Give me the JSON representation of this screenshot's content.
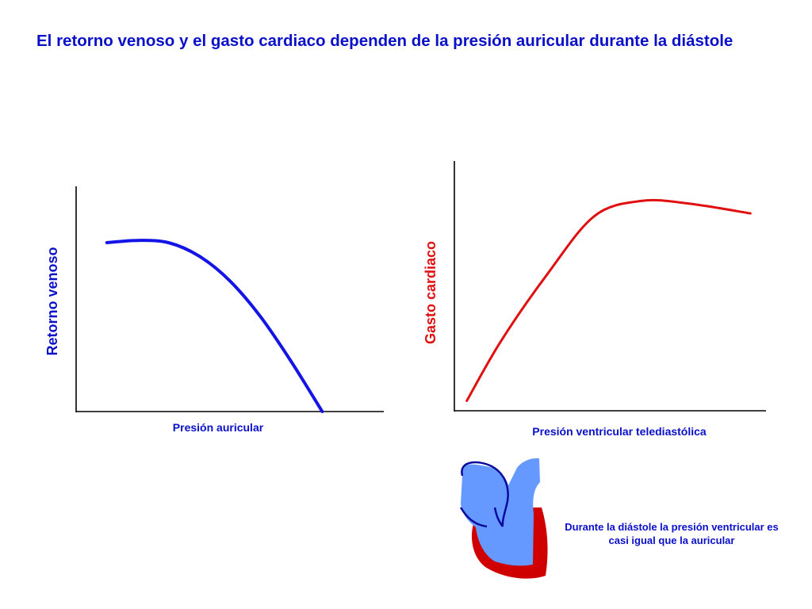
{
  "slide": {
    "title": "El retorno venoso y el gasto cardiaco dependen de la presión auricular durante la diástole"
  },
  "chart_data": [
    {
      "type": "line",
      "xlabel": "Presión auricular",
      "ylabel": "Retorno venoso",
      "x": [
        0.1,
        0.2,
        0.3,
        0.4,
        0.5,
        0.6,
        0.7,
        0.8
      ],
      "series": [
        {
          "values": [
            0.75,
            0.76,
            0.75,
            0.69,
            0.58,
            0.42,
            0.22,
            0.0
          ]
        }
      ],
      "xlim": [
        0,
        1
      ],
      "ylim": [
        0,
        1
      ],
      "grid": false,
      "color": "#1414e6"
    },
    {
      "type": "line",
      "xlabel": "Presión ventricular telediastólica",
      "ylabel": "Gasto cardiaco",
      "x": [
        0.04,
        0.15,
        0.3,
        0.45,
        0.6,
        0.75,
        0.95
      ],
      "series": [
        {
          "values": [
            0.04,
            0.28,
            0.55,
            0.78,
            0.84,
            0.83,
            0.79
          ]
        }
      ],
      "xlim": [
        0,
        1
      ],
      "ylim": [
        0,
        1
      ],
      "grid": false,
      "color": "#e01010"
    }
  ],
  "illustration": {
    "name": "heart-diagram-icon",
    "atrium_color": "#6699ff",
    "ventricle_color": "#d10000",
    "outline_color": "#0a0a9e"
  },
  "caption": "Durante la diástole la presión ventricular es casi igual que la auricular"
}
